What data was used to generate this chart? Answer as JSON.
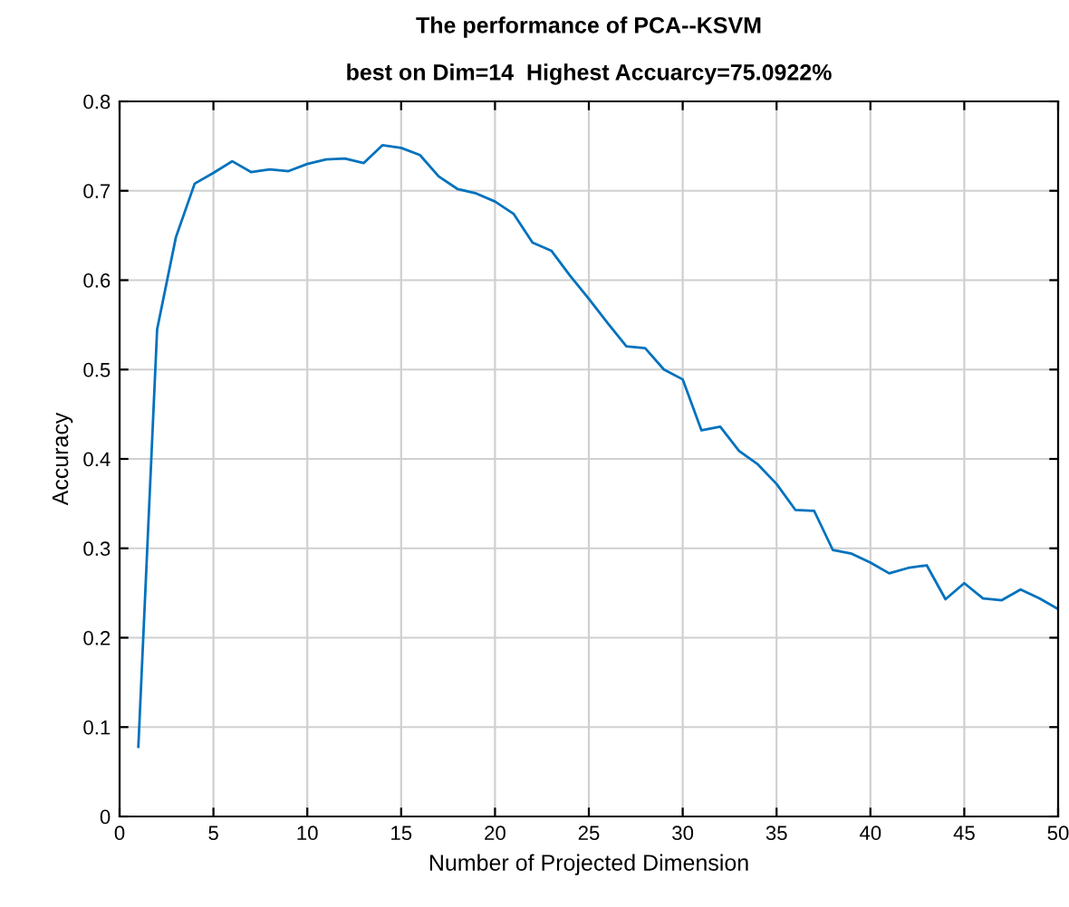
{
  "chart_data": {
    "type": "line",
    "title": "The performance of PCA--KSVM",
    "subtitle": "best on Dim=14  Highest Accuarcy=75.0922%",
    "xlabel": "Number of Projected Dimension",
    "ylabel": "Accuracy",
    "x": [
      1,
      2,
      3,
      4,
      5,
      6,
      7,
      8,
      9,
      10,
      11,
      12,
      13,
      14,
      15,
      16,
      17,
      18,
      19,
      20,
      21,
      22,
      23,
      24,
      25,
      26,
      27,
      28,
      29,
      30,
      31,
      32,
      33,
      34,
      35,
      36,
      37,
      38,
      39,
      40,
      41,
      42,
      43,
      44,
      45,
      46,
      47,
      48,
      49,
      50
    ],
    "series": [
      {
        "color": "#0072bd",
        "values": [
          0.078,
          0.545,
          0.648,
          0.708,
          0.72,
          0.733,
          0.721,
          0.724,
          0.722,
          0.73,
          0.735,
          0.736,
          0.731,
          0.751,
          0.748,
          0.74,
          0.716,
          0.702,
          0.697,
          0.688,
          0.674,
          0.642,
          0.633,
          0.605,
          0.579,
          0.552,
          0.526,
          0.524,
          0.5,
          0.489,
          0.432,
          0.436,
          0.409,
          0.394,
          0.372,
          0.343,
          0.342,
          0.298,
          0.294,
          0.284,
          0.272,
          0.278,
          0.281,
          0.243,
          0.261,
          0.244,
          0.242,
          0.254,
          0.244,
          0.232
        ]
      }
    ],
    "xlim": [
      0,
      50
    ],
    "xticks": [
      0,
      5,
      10,
      15,
      20,
      25,
      30,
      35,
      40,
      45,
      50
    ],
    "ylim": [
      0,
      0.8
    ],
    "yticks": [
      0,
      0.1,
      0.2,
      0.3,
      0.4,
      0.5,
      0.6,
      0.7,
      0.8
    ],
    "grid": true,
    "marker": "none",
    "line_style": "solid"
  }
}
